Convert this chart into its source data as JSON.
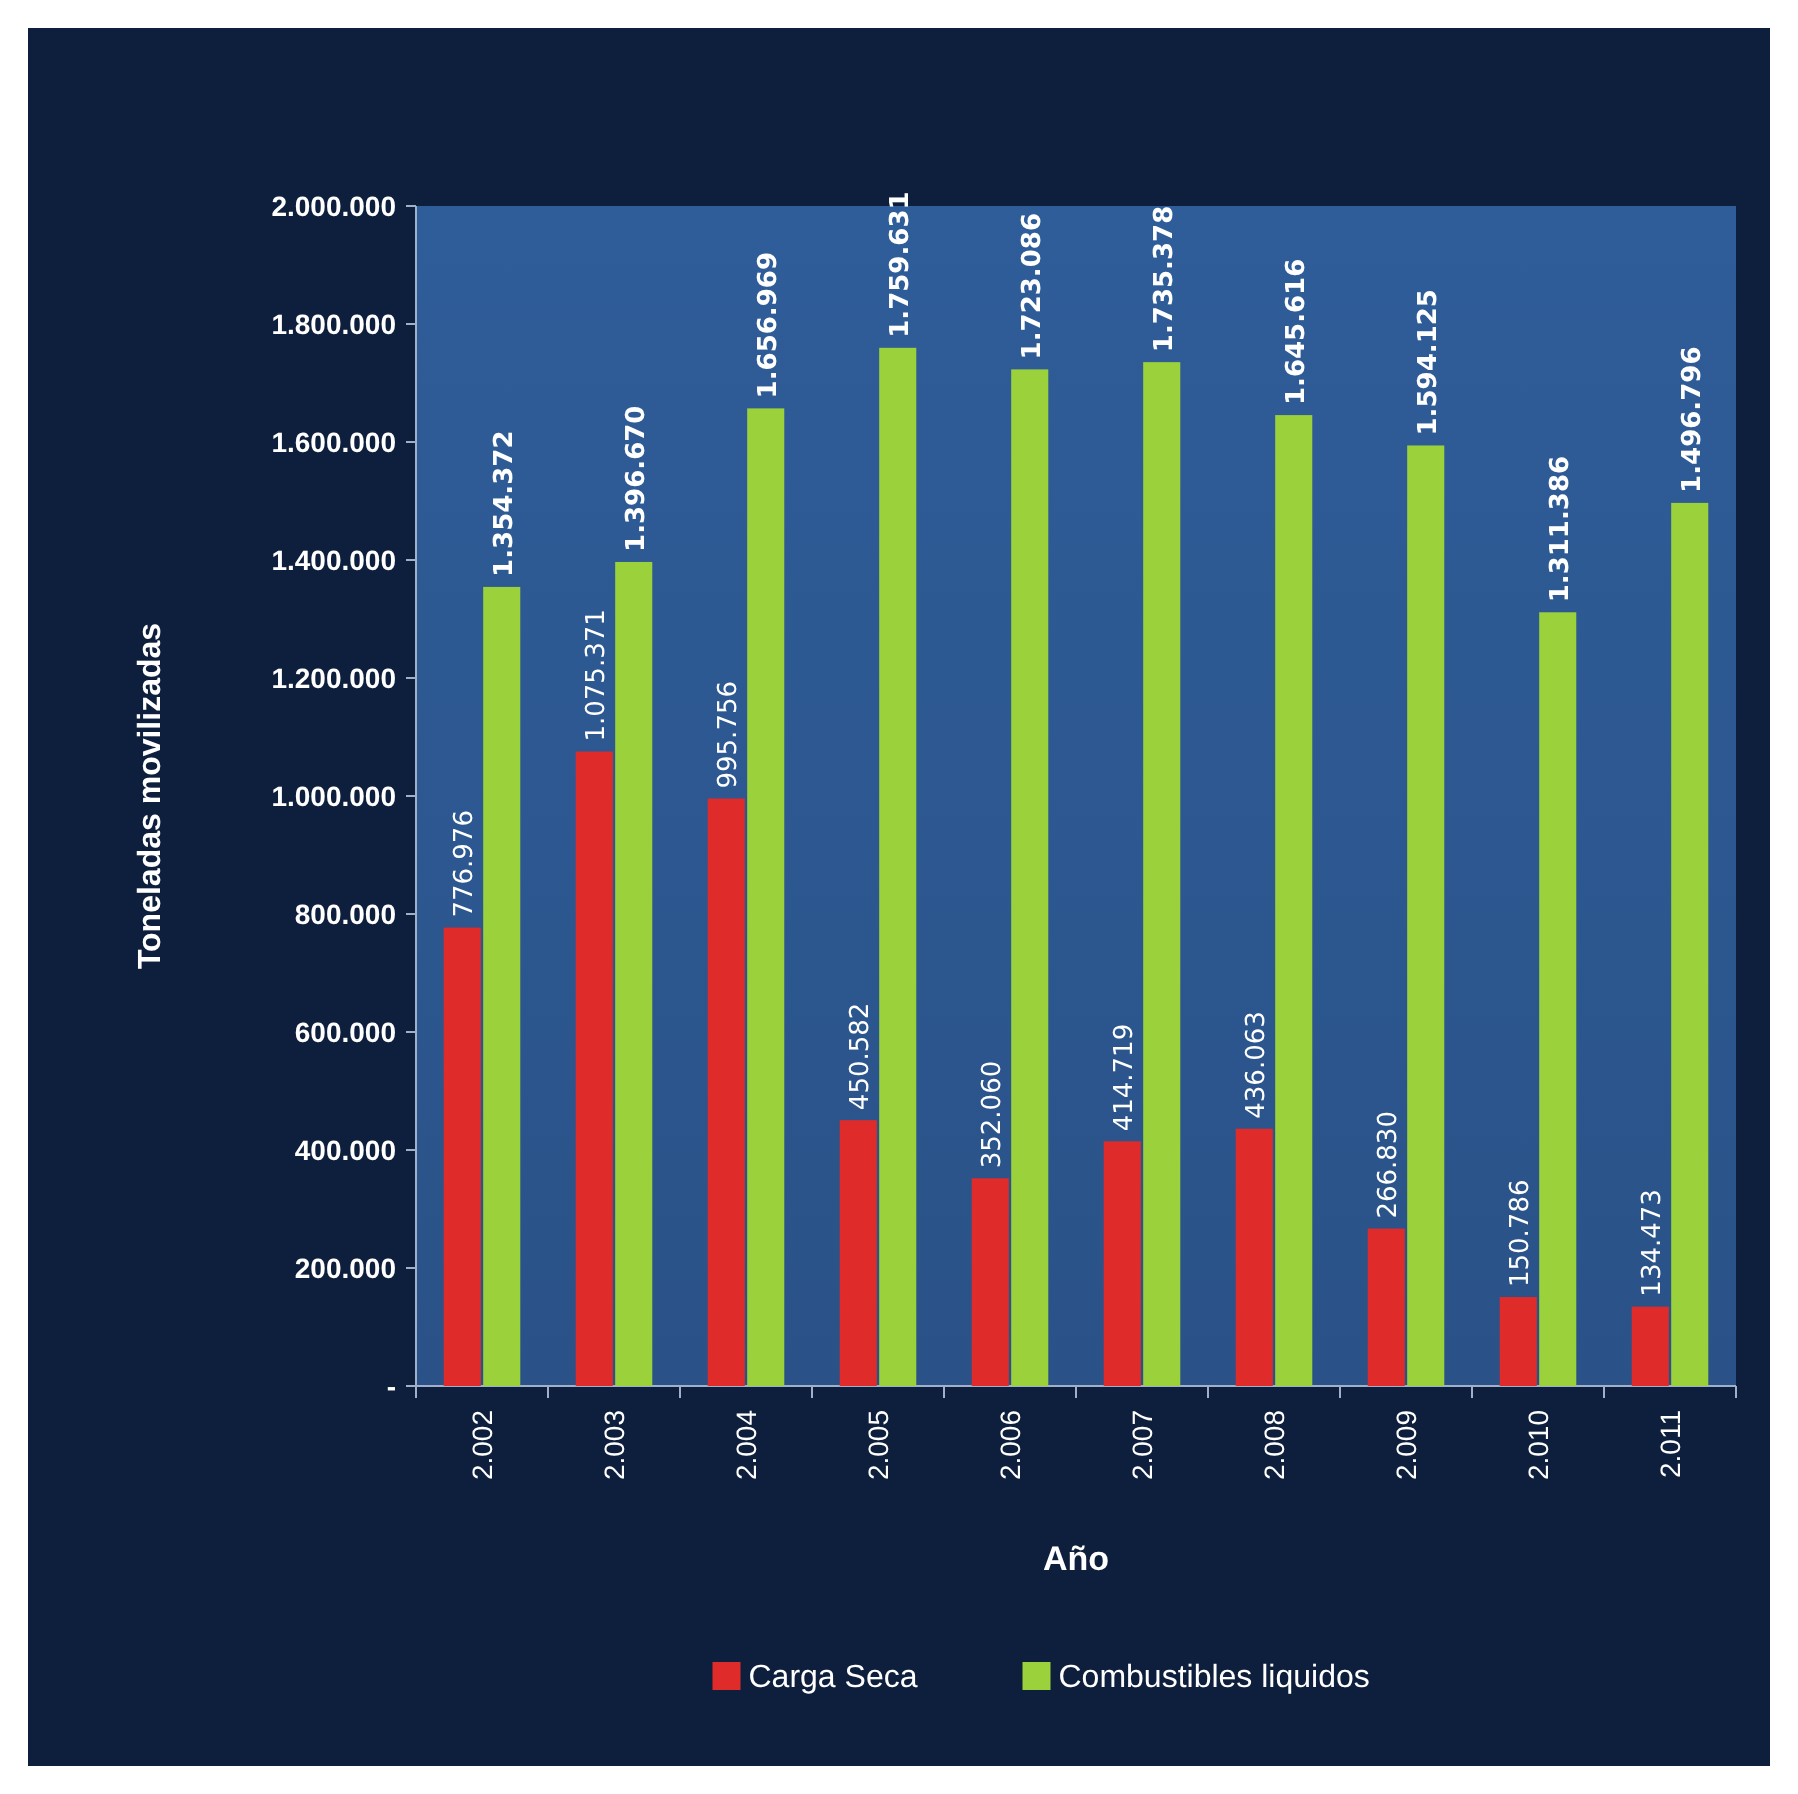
{
  "chart_data": {
    "type": "bar",
    "xlabel": "Año",
    "ylabel": "Toneladas movilizadas",
    "categories": [
      "2.002",
      "2.003",
      "2.004",
      "2.005",
      "2.006",
      "2.007",
      "2.008",
      "2.009",
      "2.010",
      "2.011"
    ],
    "series": [
      {
        "name": "Carga Seca",
        "color": "#e02b2b",
        "values": [
          776976,
          1075371,
          995756,
          450582,
          352060,
          414719,
          436063,
          266830,
          150786,
          134473
        ],
        "value_labels": [
          "776.976",
          "1.075.371",
          "995.756",
          "450.582",
          "352.060",
          "414.719",
          "436.063",
          "266.830",
          "150.786",
          "134.473"
        ]
      },
      {
        "name": "Combustibles liquidos",
        "color": "#9bd13a",
        "values": [
          1354372,
          1396670,
          1656969,
          1759631,
          1723086,
          1735378,
          1645616,
          1594125,
          1311386,
          1496796
        ],
        "value_labels": [
          "1.354.372",
          "1.396.670",
          "1.656.969",
          "1.759.631",
          "1.723.086",
          "1.735.378",
          "1.645.616",
          "1.594.125",
          "1.311.386",
          "1.496.796"
        ]
      }
    ],
    "ylim": [
      0,
      2000000
    ],
    "yticks": [
      {
        "value": 0,
        "label": "-"
      },
      {
        "value": 200000,
        "label": "200.000"
      },
      {
        "value": 400000,
        "label": "400.000"
      },
      {
        "value": 600000,
        "label": "600.000"
      },
      {
        "value": 800000,
        "label": "800.000"
      },
      {
        "value": 1000000,
        "label": "1.000.000"
      },
      {
        "value": 1200000,
        "label": "1.200.000"
      },
      {
        "value": 1400000,
        "label": "1.400.000"
      },
      {
        "value": 1600000,
        "label": "1.600.000"
      },
      {
        "value": 1800000,
        "label": "1.800.000"
      },
      {
        "value": 2000000,
        "label": "2.000.000"
      }
    ],
    "legend": "bottom"
  }
}
